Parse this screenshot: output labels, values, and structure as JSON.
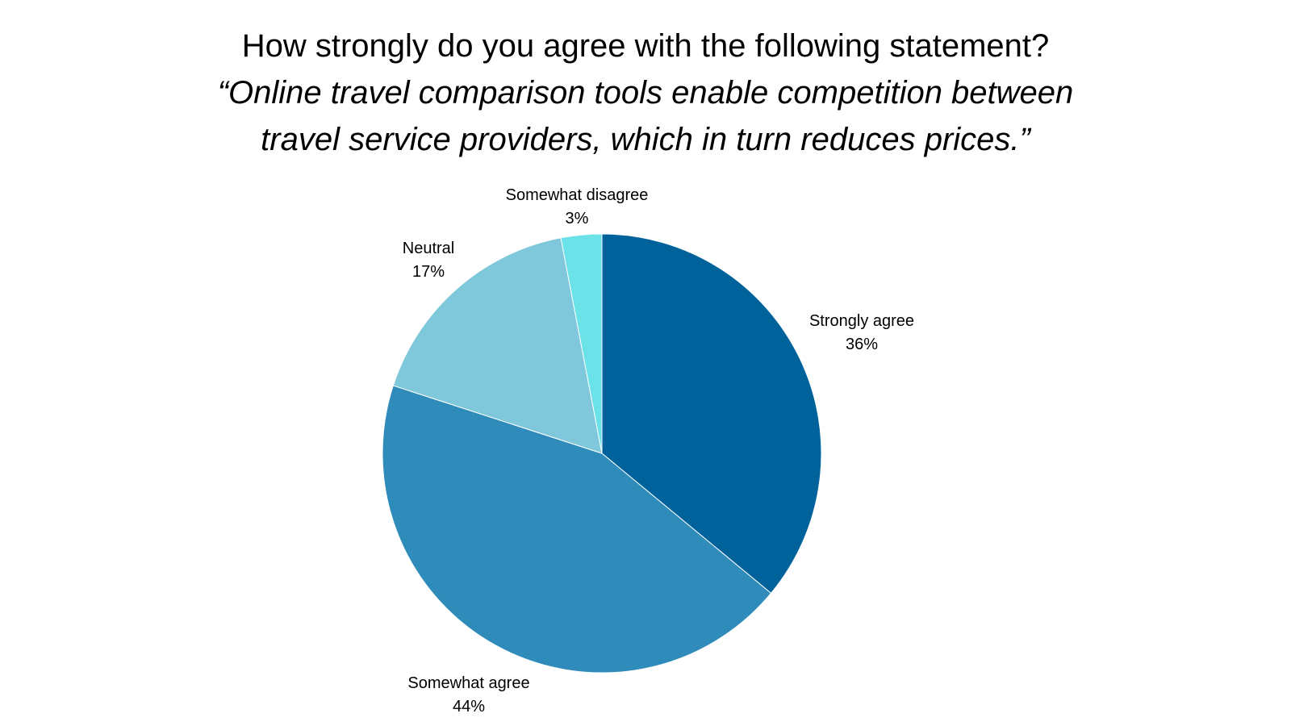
{
  "chart_data": {
    "type": "pie",
    "title": "How strongly do you agree with the following statement?",
    "subtitle_lines": [
      "“Online travel comparison tools enable competition between",
      "travel service providers, which in turn reduces prices.”"
    ],
    "slices": [
      {
        "label": "Strongly agree",
        "value": 36,
        "value_label": "36%",
        "color": "#00629B"
      },
      {
        "label": "Somewhat agree",
        "value": 44,
        "value_label": "44%",
        "color": "#2E8BBA"
      },
      {
        "label": "Neutral",
        "value": 17,
        "value_label": "17%",
        "color": "#7FC8DC"
      },
      {
        "label": "Somewhat disagree",
        "value": 3,
        "value_label": "3%",
        "color": "#6BE2E8"
      }
    ],
    "start": "12 o'clock",
    "direction": "clockwise",
    "legend": "none (labels outside slices)"
  }
}
